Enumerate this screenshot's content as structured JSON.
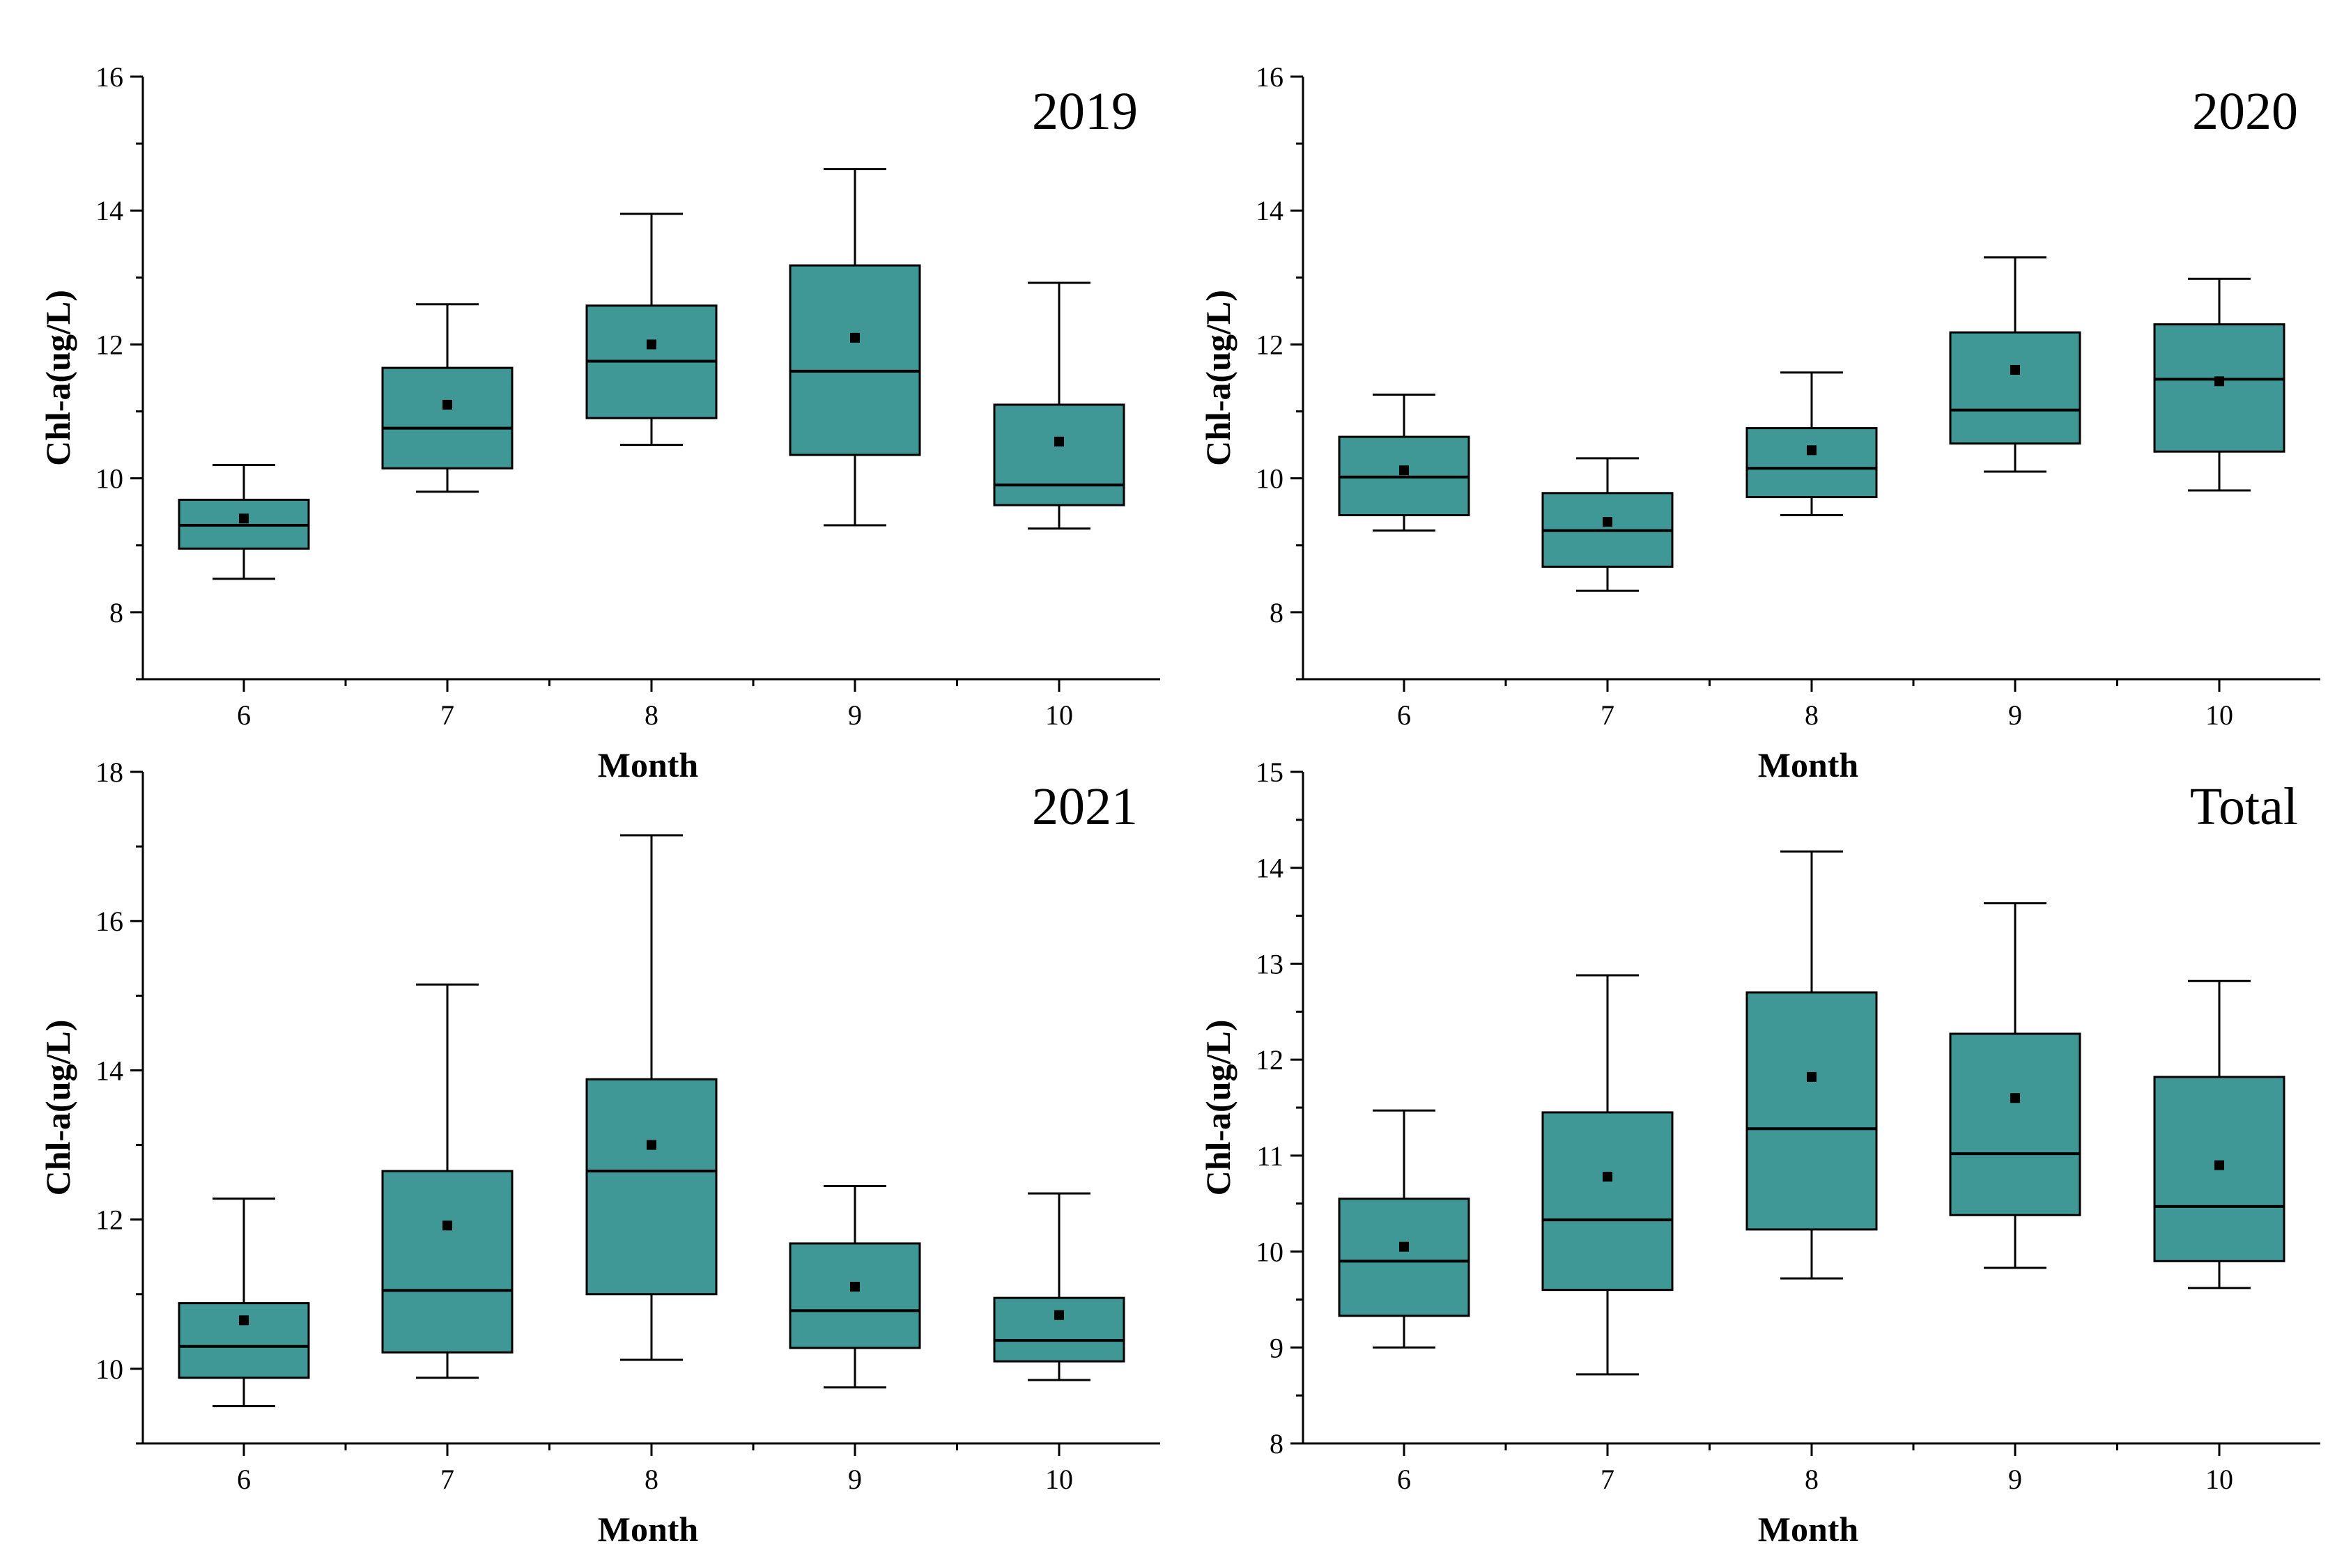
{
  "chart_data": [
    {
      "type": "box",
      "title": "2019",
      "xlabel": "Month",
      "ylabel": "Chl-a(ug/L)",
      "categories": [
        "6",
        "7",
        "8",
        "9",
        "10"
      ],
      "ylim": [
        7,
        16
      ],
      "yticks": [
        8,
        10,
        12,
        14,
        16
      ],
      "show_xlabel": true,
      "boxes": [
        {
          "min": 8.5,
          "q1": 8.95,
          "median": 9.3,
          "q3": 9.68,
          "max": 10.2,
          "mean": 9.4
        },
        {
          "min": 9.8,
          "q1": 10.15,
          "median": 10.75,
          "q3": 11.65,
          "max": 12.6,
          "mean": 11.1
        },
        {
          "min": 10.5,
          "q1": 10.9,
          "median": 11.75,
          "q3": 12.58,
          "max": 13.95,
          "mean": 12.0
        },
        {
          "min": 9.3,
          "q1": 10.35,
          "median": 11.6,
          "q3": 13.18,
          "max": 14.62,
          "mean": 12.1
        },
        {
          "min": 9.25,
          "q1": 9.6,
          "median": 9.9,
          "q3": 11.1,
          "max": 12.92,
          "mean": 10.55
        }
      ]
    },
    {
      "type": "box",
      "title": "2020",
      "xlabel": "Month",
      "ylabel": "Chl-a(ug/L)",
      "categories": [
        "6",
        "7",
        "8",
        "9",
        "10"
      ],
      "ylim": [
        7,
        16
      ],
      "yticks": [
        8,
        10,
        12,
        14,
        16
      ],
      "show_xlabel": true,
      "boxes": [
        {
          "min": 9.22,
          "q1": 9.45,
          "median": 10.02,
          "q3": 10.62,
          "max": 11.25,
          "mean": 10.12
        },
        {
          "min": 8.32,
          "q1": 8.68,
          "median": 9.22,
          "q3": 9.78,
          "max": 10.3,
          "mean": 9.35
        },
        {
          "min": 9.45,
          "q1": 9.72,
          "median": 10.15,
          "q3": 10.75,
          "max": 11.58,
          "mean": 10.42
        },
        {
          "min": 10.1,
          "q1": 10.52,
          "median": 11.02,
          "q3": 12.18,
          "max": 13.3,
          "mean": 11.62
        },
        {
          "min": 9.82,
          "q1": 10.4,
          "median": 11.48,
          "q3": 12.3,
          "max": 12.98,
          "mean": 11.45
        }
      ]
    },
    {
      "type": "box",
      "title": "2021",
      "xlabel": "Month",
      "ylabel": "Chl-a(ug/L)",
      "categories": [
        "6",
        "7",
        "8",
        "9",
        "10"
      ],
      "ylim": [
        9,
        18
      ],
      "yticks": [
        10,
        12,
        14,
        16,
        18
      ],
      "show_xlabel": true,
      "boxes": [
        {
          "min": 9.5,
          "q1": 9.88,
          "median": 10.3,
          "q3": 10.88,
          "max": 12.28,
          "mean": 10.65
        },
        {
          "min": 9.88,
          "q1": 10.22,
          "median": 11.05,
          "q3": 12.65,
          "max": 15.15,
          "mean": 11.92
        },
        {
          "min": 10.12,
          "q1": 11.0,
          "median": 12.65,
          "q3": 13.88,
          "max": 17.15,
          "mean": 13.0
        },
        {
          "min": 9.75,
          "q1": 10.28,
          "median": 10.78,
          "q3": 11.68,
          "max": 12.45,
          "mean": 11.1
        },
        {
          "min": 9.85,
          "q1": 10.1,
          "median": 10.38,
          "q3": 10.95,
          "max": 12.35,
          "mean": 10.72
        }
      ]
    },
    {
      "type": "box",
      "title": "Total",
      "xlabel": "Month",
      "ylabel": "Chl-a(ug/L)",
      "categories": [
        "6",
        "7",
        "8",
        "9",
        "10"
      ],
      "ylim": [
        8,
        15
      ],
      "yticks": [
        8,
        9,
        10,
        11,
        12,
        13,
        14,
        15
      ],
      "show_xlabel": true,
      "boxes": [
        {
          "min": 9.0,
          "q1": 9.33,
          "median": 9.9,
          "q3": 10.55,
          "max": 11.47,
          "mean": 10.05
        },
        {
          "min": 8.72,
          "q1": 9.6,
          "median": 10.33,
          "q3": 11.45,
          "max": 12.88,
          "mean": 10.78
        },
        {
          "min": 9.72,
          "q1": 10.23,
          "median": 11.28,
          "q3": 12.7,
          "max": 14.17,
          "mean": 11.82
        },
        {
          "min": 9.83,
          "q1": 10.38,
          "median": 11.02,
          "q3": 12.27,
          "max": 13.63,
          "mean": 11.6
        },
        {
          "min": 9.62,
          "q1": 9.9,
          "median": 10.47,
          "q3": 11.82,
          "max": 12.82,
          "mean": 10.9
        }
      ]
    }
  ]
}
